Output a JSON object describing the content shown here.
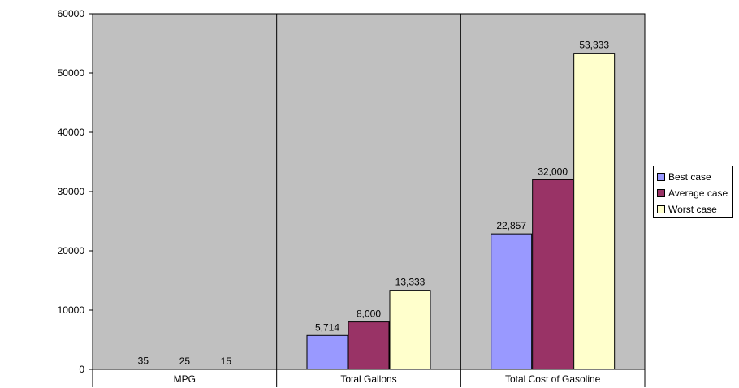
{
  "chart_data": {
    "type": "bar",
    "title": "",
    "xlabel": "",
    "ylabel": "",
    "categories": [
      "MPG",
      "Total Gallons",
      "Total Cost of Gasoline"
    ],
    "series": [
      {
        "name": "Best case",
        "color": "#9999ff",
        "values": [
          35,
          5714,
          22857
        ],
        "labels": [
          "35",
          "5,714",
          "22,857"
        ]
      },
      {
        "name": "Average case",
        "color": "#993366",
        "values": [
          25,
          8000,
          32000
        ],
        "labels": [
          "25",
          "8,000",
          "32,000"
        ]
      },
      {
        "name": "Worst case",
        "color": "#ffffcc",
        "values": [
          15,
          13333,
          53333
        ],
        "labels": [
          "15",
          "13,333",
          "53,333"
        ]
      }
    ],
    "ylim": [
      0,
      60000
    ],
    "yticks": [
      "0",
      "10000",
      "20000",
      "30000",
      "40000",
      "50000",
      "60000"
    ],
    "grid": false,
    "plot_background": "#c0c0c0",
    "legend_position": "right"
  }
}
